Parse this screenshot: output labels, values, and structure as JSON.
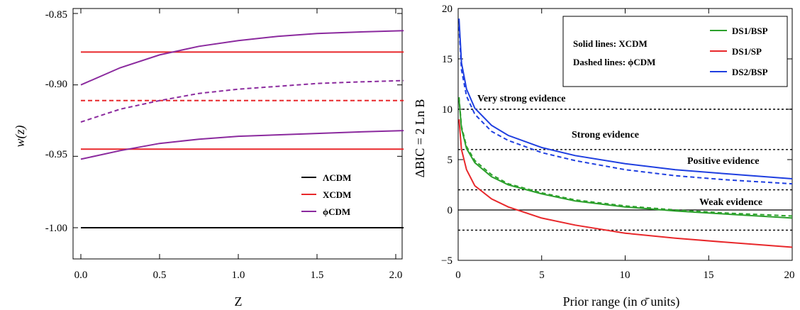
{
  "chart_data": [
    {
      "type": "line",
      "title": "",
      "xlabel": "Z",
      "ylabel": "w(z)",
      "xlim": [
        0,
        2.05
      ],
      "ylim": [
        -1.025,
        -0.845
      ],
      "x_ticks": [
        "0.0",
        "0.5",
        "1.0",
        "1.5",
        "2.0"
      ],
      "y_ticks": [
        "-0.85",
        "-0.90",
        "-0.95",
        "-1.00"
      ],
      "grid": false,
      "legend_position": "bottom-right",
      "legend": [
        {
          "label": "ΛCDM",
          "color": "#000000"
        },
        {
          "label": "XCDM",
          "color": "#e8282b"
        },
        {
          "label": "ϕCDM",
          "color": "#8b2a9e"
        }
      ],
      "series": [
        {
          "name": "ΛCDM",
          "style": "solid",
          "color": "#000000",
          "x": [
            0,
            0.5,
            1.0,
            1.5,
            2.05
          ],
          "y": [
            -1.0,
            -1.0,
            -1.0,
            -1.0,
            -1.0
          ]
        },
        {
          "name": "XCDM",
          "style": "solid",
          "color": "#e8282b",
          "x": [
            0,
            2.05
          ],
          "y": [
            -0.877,
            -0.877
          ]
        },
        {
          "name": "XCDM",
          "style": "dashed",
          "color": "#e8282b",
          "x": [
            0,
            2.05
          ],
          "y": [
            -0.911,
            -0.911
          ]
        },
        {
          "name": "XCDM",
          "style": "solid",
          "color": "#e8282b",
          "x": [
            0,
            2.05
          ],
          "y": [
            -0.945,
            -0.945
          ]
        },
        {
          "name": "ϕCDM",
          "style": "solid",
          "color": "#8b2a9e",
          "x": [
            0,
            0.25,
            0.5,
            0.75,
            1.0,
            1.25,
            1.5,
            1.75,
            2.05
          ],
          "y": [
            -0.9,
            -0.888,
            -0.879,
            -0.873,
            -0.869,
            -0.866,
            -0.864,
            -0.863,
            -0.862
          ]
        },
        {
          "name": "ϕCDM",
          "style": "dashed",
          "color": "#8b2a9e",
          "x": [
            0,
            0.25,
            0.5,
            0.75,
            1.0,
            1.25,
            1.5,
            1.75,
            2.05
          ],
          "y": [
            -0.926,
            -0.917,
            -0.911,
            -0.906,
            -0.903,
            -0.901,
            -0.899,
            -0.898,
            -0.897
          ]
        },
        {
          "name": "ϕCDM",
          "style": "solid",
          "color": "#8b2a9e",
          "x": [
            0,
            0.25,
            0.5,
            0.75,
            1.0,
            1.25,
            1.5,
            1.75,
            2.05
          ],
          "y": [
            -0.952,
            -0.946,
            -0.941,
            -0.938,
            -0.936,
            -0.935,
            -0.934,
            -0.933,
            -0.932
          ]
        }
      ]
    },
    {
      "type": "line",
      "title": "",
      "xlabel": "Prior range (in σ̄ units)",
      "ylabel": "ΔBIC = 2 Ln B",
      "xlim": [
        0,
        20
      ],
      "ylim": [
        -5,
        20
      ],
      "x_ticks": [
        "0",
        "5",
        "10",
        "15",
        "20"
      ],
      "y_ticks": [
        "20",
        "15",
        "10",
        "5",
        "0",
        "−5"
      ],
      "grid": false,
      "legend_position": "top-right",
      "legend_notes": [
        "Solid lines:  XCDM",
        "Dashed lines:  ϕCDM"
      ],
      "legend": [
        {
          "label": "DS1/BSP",
          "color": "#2ca02c"
        },
        {
          "label": "DS1/SP",
          "color": "#e8282b"
        },
        {
          "label": "DS2/BSP",
          "color": "#1f3fe0"
        }
      ],
      "annotations": [
        {
          "text": "Very strong evidence",
          "x": 1.2,
          "y": 10.8
        },
        {
          "text": "Strong evidence",
          "x": 7.0,
          "y": 6.8
        },
        {
          "text": "Positive evidence",
          "x": 14.1,
          "y": 2.8
        },
        {
          "text": "Weak evidence",
          "x": 14.8,
          "y": 0.4
        }
      ],
      "reference_lines": [
        {
          "y": 10,
          "style": "dotted"
        },
        {
          "y": 6,
          "style": "dotted"
        },
        {
          "y": 2,
          "style": "dotted"
        },
        {
          "y": 0,
          "style": "solid"
        },
        {
          "y": -2,
          "style": "dotted"
        }
      ],
      "series": [
        {
          "name": "DS2/BSP",
          "style": "solid",
          "color": "#1f3fe0",
          "x": [
            0.05,
            0.2,
            0.5,
            1,
            2,
            3,
            5,
            7,
            10,
            13,
            16,
            20
          ],
          "y": [
            19.0,
            14.6,
            12.0,
            10.1,
            8.4,
            7.4,
            6.2,
            5.4,
            4.6,
            4.0,
            3.6,
            3.1
          ]
        },
        {
          "name": "DS2/BSP",
          "style": "dashed",
          "color": "#1f3fe0",
          "x": [
            0.05,
            0.2,
            0.5,
            1,
            2,
            3,
            5,
            7,
            10,
            13,
            16,
            20
          ],
          "y": [
            18.2,
            13.9,
            11.3,
            9.5,
            7.8,
            6.9,
            5.7,
            4.9,
            4.0,
            3.4,
            3.0,
            2.6
          ]
        },
        {
          "name": "DS1/BSP",
          "style": "solid",
          "color": "#2ca02c",
          "x": [
            0.05,
            0.2,
            0.5,
            1,
            2,
            3,
            5,
            7,
            10,
            13,
            16,
            20
          ],
          "y": [
            11.0,
            8.1,
            6.1,
            4.7,
            3.3,
            2.5,
            1.6,
            0.9,
            0.3,
            -0.1,
            -0.4,
            -0.8
          ]
        },
        {
          "name": "DS1/BSP",
          "style": "dashed",
          "color": "#2ca02c",
          "x": [
            0.05,
            0.2,
            0.5,
            1,
            2,
            3,
            5,
            7,
            10,
            13,
            16,
            20
          ],
          "y": [
            11.2,
            8.3,
            6.3,
            4.9,
            3.5,
            2.6,
            1.7,
            1.0,
            0.4,
            0.0,
            -0.3,
            -0.6
          ]
        },
        {
          "name": "DS1/SP",
          "style": "solid",
          "color": "#e8282b",
          "x": [
            0.05,
            0.2,
            0.5,
            1,
            2,
            3,
            5,
            7,
            10,
            13,
            16,
            20
          ],
          "y": [
            9.0,
            6.0,
            4.0,
            2.4,
            1.1,
            0.3,
            -0.8,
            -1.5,
            -2.3,
            -2.8,
            -3.2,
            -3.7
          ]
        }
      ]
    }
  ]
}
